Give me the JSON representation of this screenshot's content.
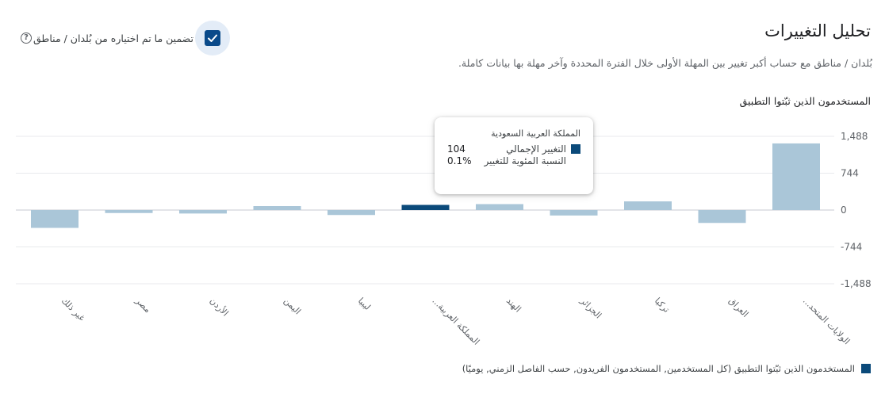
{
  "header": {
    "title": "تحليل التغييرات",
    "description": "بُلدان / مناطق مع حساب أكبر تغيير بين المهلة الأولى خلال الفترة المحددة وآخر مهلة بها بيانات كاملة.",
    "metric_label": "المستخدمون الذين ثبّتوا التطبيق"
  },
  "include_selected": {
    "label": "تضمين ما تم اختياره من بُلدان / مناطق",
    "checked": true,
    "help_icon": "help-circle-icon",
    "check_icon": "check-icon"
  },
  "tooltip": {
    "title": "المملكة العربية السعودية",
    "rows": [
      {
        "label": "التغيير الإجمالي",
        "value": "104"
      },
      {
        "label": "النسبة المئوية للتغيير",
        "value": "0.1%"
      }
    ]
  },
  "legend": {
    "label": "المستخدمون الذين ثبّتوا التطبيق (كل المستخدمين, المستخدمون الفريدون, حسب الفاصل الزمني, يوميًا)"
  },
  "colors": {
    "bar": "#aac6d8",
    "bar_highlight": "#0b4a7a",
    "grid": "#e8eaed",
    "zero_line": "#dadce0",
    "axis_text": "#5f6368",
    "checkbox": "#0a4a8a"
  },
  "chart_data": {
    "type": "bar",
    "categories": [
      "غير ذلك",
      "مصر",
      "الأردن",
      "اليمن",
      "ليبيا",
      "المملكة العربية...",
      "الهند",
      "الجزائر",
      "تركيا",
      "العراق",
      "الولايات المتحد..."
    ],
    "values": [
      -360,
      -60,
      -70,
      80,
      -100,
      104,
      120,
      -110,
      175,
      -260,
      1345
    ],
    "highlight_index": 5,
    "y_ticks": [
      "1,488",
      "744",
      "0",
      "-744",
      "-1,488"
    ],
    "y_tick_values": [
      1488,
      744,
      0,
      -744,
      -1488
    ],
    "ylim": [
      -1488,
      1488
    ],
    "grid": true,
    "y_axis_position": "right"
  }
}
